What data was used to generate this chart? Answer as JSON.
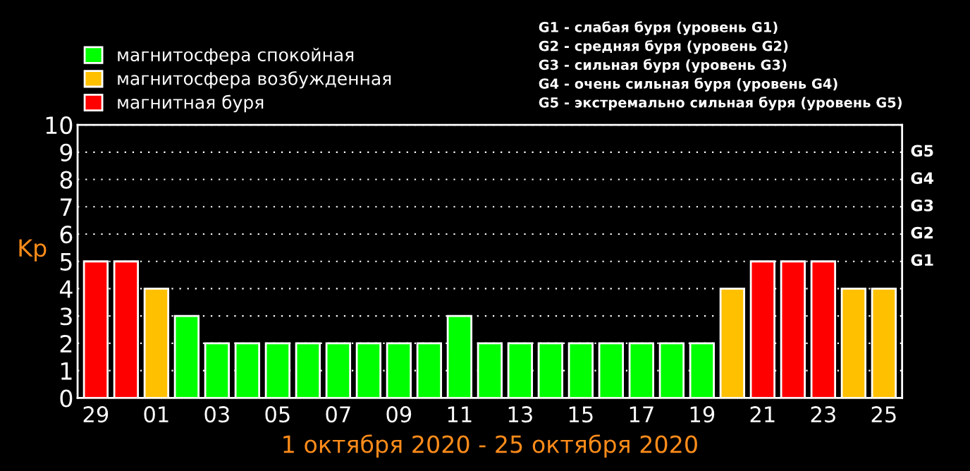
{
  "chart_data": {
    "type": "bar",
    "xlabel": "1 октября 2020 - 25 октября 2020",
    "ylabel": "Kp",
    "categories": [
      "29",
      null,
      "01",
      null,
      "03",
      null,
      "05",
      null,
      "07",
      null,
      "09",
      null,
      "11",
      null,
      "13",
      null,
      "15",
      null,
      "17",
      null,
      "19",
      null,
      "21",
      null,
      "23",
      null,
      "25"
    ],
    "series": [
      {
        "name": "магнитосфера спокойная",
        "color": "#00ff00",
        "values": [
          null,
          null,
          null,
          3,
          2,
          2,
          2,
          2,
          2,
          2,
          2,
          2,
          3,
          2,
          2,
          2,
          2,
          2,
          2,
          2,
          2,
          null,
          null,
          null,
          null,
          null,
          null
        ]
      },
      {
        "name": "магнитосфера возбужденная",
        "color": "#ffc000",
        "values": [
          null,
          null,
          4,
          null,
          null,
          null,
          null,
          null,
          null,
          null,
          null,
          null,
          null,
          null,
          null,
          null,
          null,
          null,
          null,
          null,
          null,
          4,
          null,
          null,
          null,
          4,
          4
        ]
      },
      {
        "name": "магнитная буря",
        "color": "#ff0000",
        "values": [
          5,
          5,
          null,
          null,
          null,
          null,
          null,
          null,
          null,
          null,
          null,
          null,
          null,
          null,
          null,
          null,
          null,
          null,
          null,
          null,
          null,
          null,
          5,
          5,
          5,
          null,
          null
        ]
      }
    ],
    "ylim": [
      0,
      10
    ],
    "yticks": [
      0,
      1,
      2,
      3,
      4,
      5,
      6,
      7,
      8,
      9,
      10
    ],
    "grid": "y",
    "legend": "top left",
    "annotations": [
      "G1 - слабая буря (уровень G1)",
      "G2 - средняя буря (уровень G2)",
      "G3 - сильная буря (уровень G3)",
      "G4 - очень сильная буря (уровень G4)",
      "G5 - экстремально сильная буря (уровень G5)",
      "G1",
      "G2",
      "G3",
      "G4",
      "G5"
    ]
  }
}
